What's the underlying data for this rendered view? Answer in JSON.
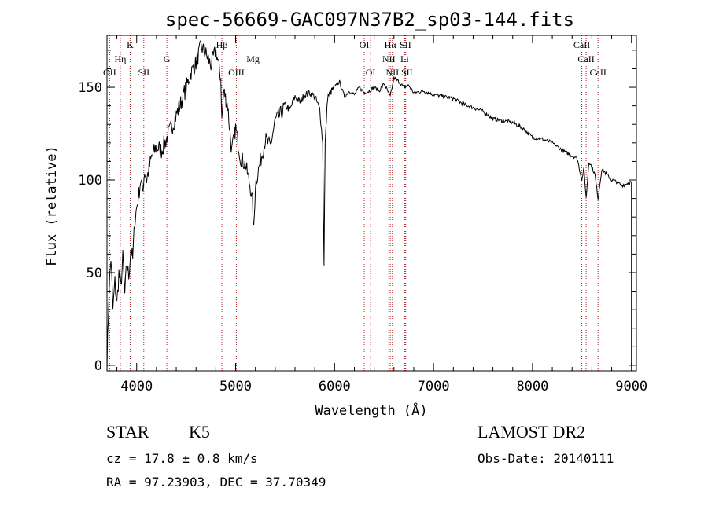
{
  "chart_data": {
    "type": "line",
    "title": "spec-56669-GAC097N37B2_sp03-144.fits",
    "xlabel": "Wavelength (Å)",
    "ylabel": "Flux (relative)",
    "xlim": [
      3700,
      9050
    ],
    "ylim": [
      -3,
      178
    ],
    "xticks": [
      4000,
      5000,
      6000,
      7000,
      8000,
      9000
    ],
    "yticks": [
      0,
      50,
      100,
      150
    ],
    "grid": false,
    "series": [
      {
        "x": [
          3700,
          3720,
          3740,
          3760,
          3780,
          3800,
          3820,
          3840,
          3860,
          3880,
          3900,
          3920,
          3940,
          3960,
          3980,
          4000,
          4020,
          4040,
          4060,
          4080,
          4100,
          4150,
          4200,
          4250,
          4300,
          4350,
          4400,
          4450,
          4500,
          4550,
          4600,
          4650,
          4700,
          4750,
          4800,
          4850,
          4861,
          4880,
          4920,
          4960,
          5000,
          5050,
          5100,
          5150,
          5170,
          5183,
          5200,
          5250,
          5300,
          5350,
          5400,
          5450,
          5500,
          5550,
          5600,
          5650,
          5700,
          5750,
          5800,
          5850,
          5880,
          5893,
          5905,
          5930,
          5970,
          6000,
          6050,
          6100,
          6150,
          6200,
          6250,
          6300,
          6350,
          6400,
          6450,
          6500,
          6563,
          6600,
          6650,
          6700,
          6750,
          6800,
          6900,
          7000,
          7100,
          7200,
          7300,
          7400,
          7500,
          7600,
          7700,
          7800,
          7900,
          8000,
          8100,
          8200,
          8300,
          8400,
          8450,
          8498,
          8520,
          8542,
          8570,
          8600,
          8630,
          8662,
          8700,
          8750,
          8800,
          8850,
          8900,
          8950,
          9000
        ],
        "y": [
          0,
          40,
          58,
          30,
          45,
          33,
          50,
          42,
          58,
          38,
          55,
          48,
          63,
          57,
          78,
          85,
          92,
          100,
          94,
          105,
          100,
          112,
          118,
          116,
          122,
          128,
          135,
          142,
          150,
          158,
          163,
          172,
          168,
          162,
          170,
          155,
          132,
          148,
          140,
          115,
          128,
          112,
          108,
          96,
          88,
          72,
          98,
          110,
          122,
          118,
          132,
          135,
          140,
          138,
          145,
          142,
          146,
          147,
          145,
          138,
          120,
          55,
          120,
          145,
          148,
          150,
          153,
          145,
          148,
          146,
          150,
          147,
          148,
          150,
          148,
          152,
          145,
          155,
          153,
          150,
          151,
          147,
          148,
          146,
          145,
          144,
          141,
          139,
          137,
          133,
          132,
          131,
          128,
          123,
          122,
          120,
          116,
          113,
          112,
          100,
          106,
          90,
          110,
          107,
          103,
          90,
          106,
          103,
          100,
          99,
          97,
          98,
          99
        ]
      }
    ],
    "lines": [
      {
        "label": "OII",
        "x": 3727,
        "row": 3
      },
      {
        "label": "Hη",
        "x": 3835,
        "row": 2
      },
      {
        "label": "K",
        "x": 3934,
        "row": 1
      },
      {
        "label": "SII",
        "x": 4072,
        "row": 3
      },
      {
        "label": "G",
        "x": 4305,
        "row": 2
      },
      {
        "label": "Hβ",
        "x": 4861,
        "row": 1
      },
      {
        "label": "OIII",
        "x": 5007,
        "row": 3
      },
      {
        "label": "Mg",
        "x": 5175,
        "row": 2
      },
      {
        "label": "OI",
        "x": 6300,
        "row": 1
      },
      {
        "label": "OI",
        "x": 6364,
        "row": 3
      },
      {
        "label": "Hα",
        "x": 6563,
        "row": 1
      },
      {
        "label": "NII",
        "x": 6548,
        "row": 2
      },
      {
        "label": "NII",
        "x": 6584,
        "row": 3
      },
      {
        "label": "SII",
        "x": 6716,
        "row": 1
      },
      {
        "label": "Li",
        "x": 6708,
        "row": 2
      },
      {
        "label": "SII",
        "x": 6731,
        "row": 3
      },
      {
        "label": "CaII",
        "x": 8498,
        "row": 1
      },
      {
        "label": "CaII",
        "x": 8542,
        "row": 2
      },
      {
        "label": "CaII",
        "x": 8662,
        "row": 3
      }
    ]
  },
  "info": {
    "object_class": "STAR",
    "subclass": "K5",
    "survey": "LAMOST DR2",
    "redshift": "cz = 17.8 ± 0.8 km/s",
    "obs_date": "Obs-Date: 20140111",
    "coords": "RA =  97.23903, DEC =  37.70349"
  },
  "colors": {
    "spectrum": "#000000",
    "line_markers": "#b02020"
  }
}
